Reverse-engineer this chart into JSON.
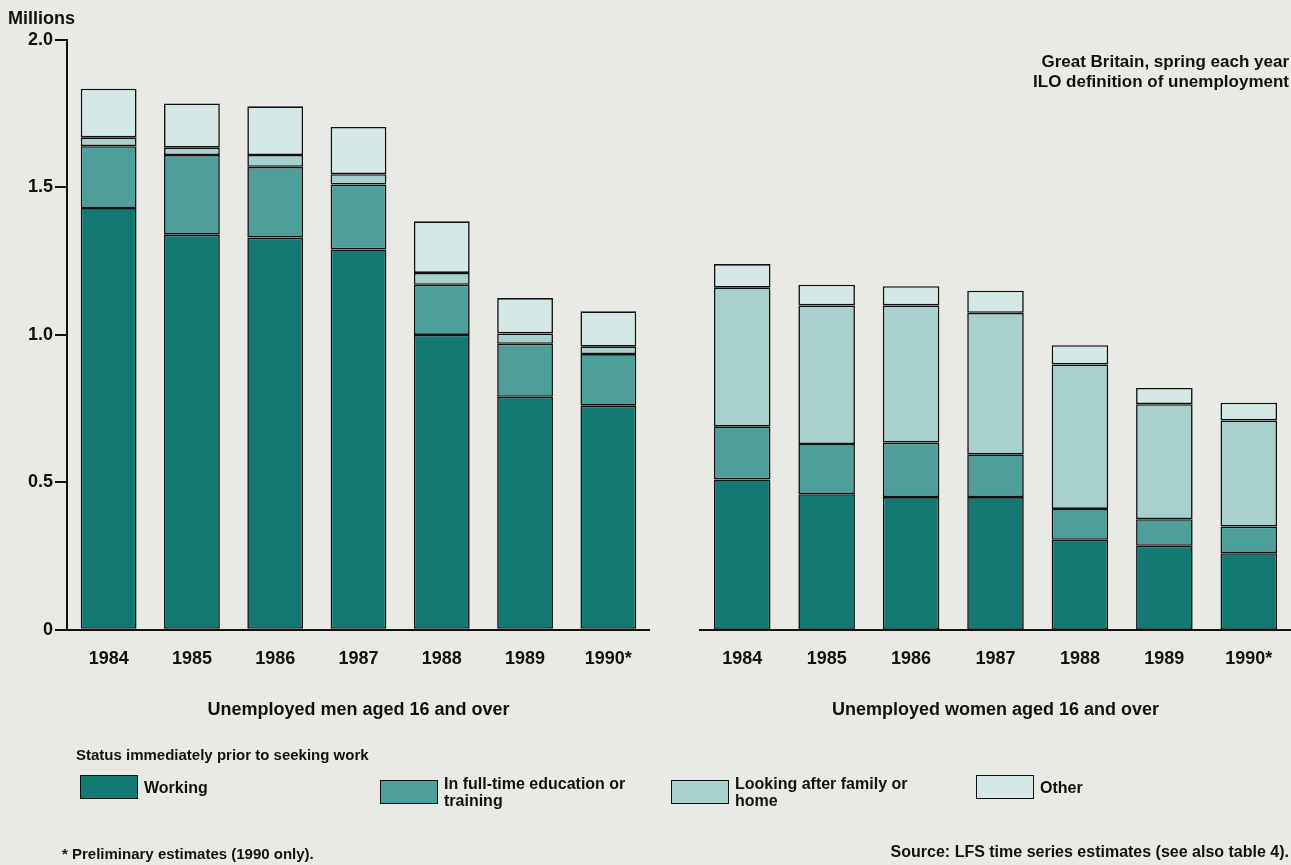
{
  "chart_data": [
    {
      "type": "bar",
      "stacked": true,
      "ylabel": "Millions",
      "xlabel": "Unemployed men aged 16 and over",
      "legend_title": "Status immediately prior to seeking work",
      "legend": "bottom",
      "grid": false,
      "categories": [
        "1984",
        "1985",
        "1986",
        "1987",
        "1988",
        "1989",
        "1990*"
      ],
      "ylim": [
        0,
        2
      ],
      "yticks": [
        0,
        0.5,
        {
          "value": 1,
          "label": "1.0"
        },
        1.5,
        {
          "value": 2,
          "label": "2.0"
        }
      ],
      "series": [
        {
          "name": "Working",
          "color": "#127a70",
          "values": [
            1.43,
            1.34,
            1.33,
            1.29,
            1.0,
            0.79,
            0.76
          ]
        },
        {
          "name": "In full-time  education or training",
          "color": "#4e9f99",
          "values": [
            0.21,
            0.27,
            0.24,
            0.22,
            0.17,
            0.18,
            0.175
          ]
        },
        {
          "name": "Looking after family or home",
          "color": "#a8d0cd",
          "values": [
            0.03,
            0.025,
            0.04,
            0.035,
            0.04,
            0.035,
            0.025
          ]
        },
        {
          "name": "Other",
          "color": "#d5e8e5",
          "values": [
            0.165,
            0.15,
            0.165,
            0.16,
            0.175,
            0.12,
            0.12
          ]
        }
      ],
      "annotations": [
        "*   Preliminary estimates (1990 only)."
      ]
    },
    {
      "type": "bar",
      "stacked": true,
      "xlabel": "Unemployed women aged 16 and over",
      "grid": false,
      "tick_labels": "x",
      "categories": [
        "1984",
        "1985",
        "1986",
        "1987",
        "1988",
        "1989",
        "1990*"
      ],
      "ylim": [
        0,
        2
      ],
      "series": [
        {
          "color": "#127a70",
          "values": [
            0.51,
            0.46,
            0.45,
            0.45,
            0.305,
            0.285,
            0.26
          ]
        },
        {
          "color": "#4e9f99",
          "values": [
            0.18,
            0.17,
            0.185,
            0.145,
            0.105,
            0.09,
            0.09
          ]
        },
        {
          "color": "#a8d0cd",
          "values": [
            0.47,
            0.47,
            0.465,
            0.48,
            0.49,
            0.39,
            0.36
          ]
        },
        {
          "color": "#d5e8e5",
          "values": [
            0.08,
            0.07,
            0.065,
            0.075,
            0.065,
            0.055,
            0.06
          ]
        }
      ],
      "annotations": [
        "Great Britain, spring each year",
        "ILO definition of unemployment",
        "Source: LFS time series estimates (see also table 4)."
      ]
    }
  ]
}
